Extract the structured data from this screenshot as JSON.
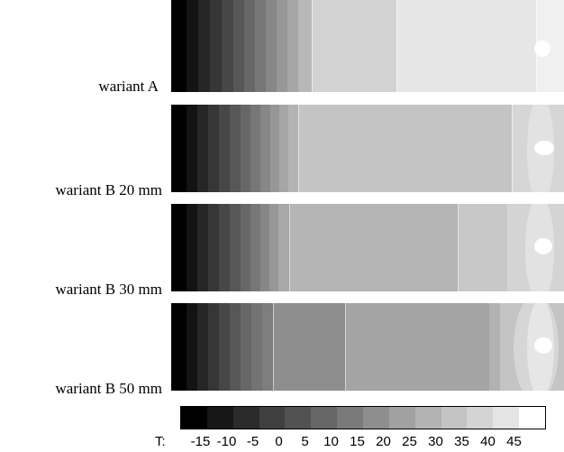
{
  "variants": [
    {
      "label": "wariant A"
    },
    {
      "label": "wariant B 20 mm"
    },
    {
      "label": "wariant B 30 mm"
    },
    {
      "label": "wariant B 50 mm"
    }
  ],
  "legend": {
    "prefix": "T:",
    "ticks": [
      "-15",
      "-10",
      "-5",
      "0",
      "5",
      "10",
      "15",
      "20",
      "25",
      "30",
      "35",
      "40",
      "45"
    ],
    "colors": [
      "#000000",
      "#171717",
      "#2b2b2b",
      "#3f3f3f",
      "#525252",
      "#666666",
      "#7a7a7a",
      "#8e8e8e",
      "#a1a1a1",
      "#b3b3b3",
      "#c4c4c4",
      "#d4d4d4",
      "#e4e4e4",
      "#ffffff"
    ]
  }
}
